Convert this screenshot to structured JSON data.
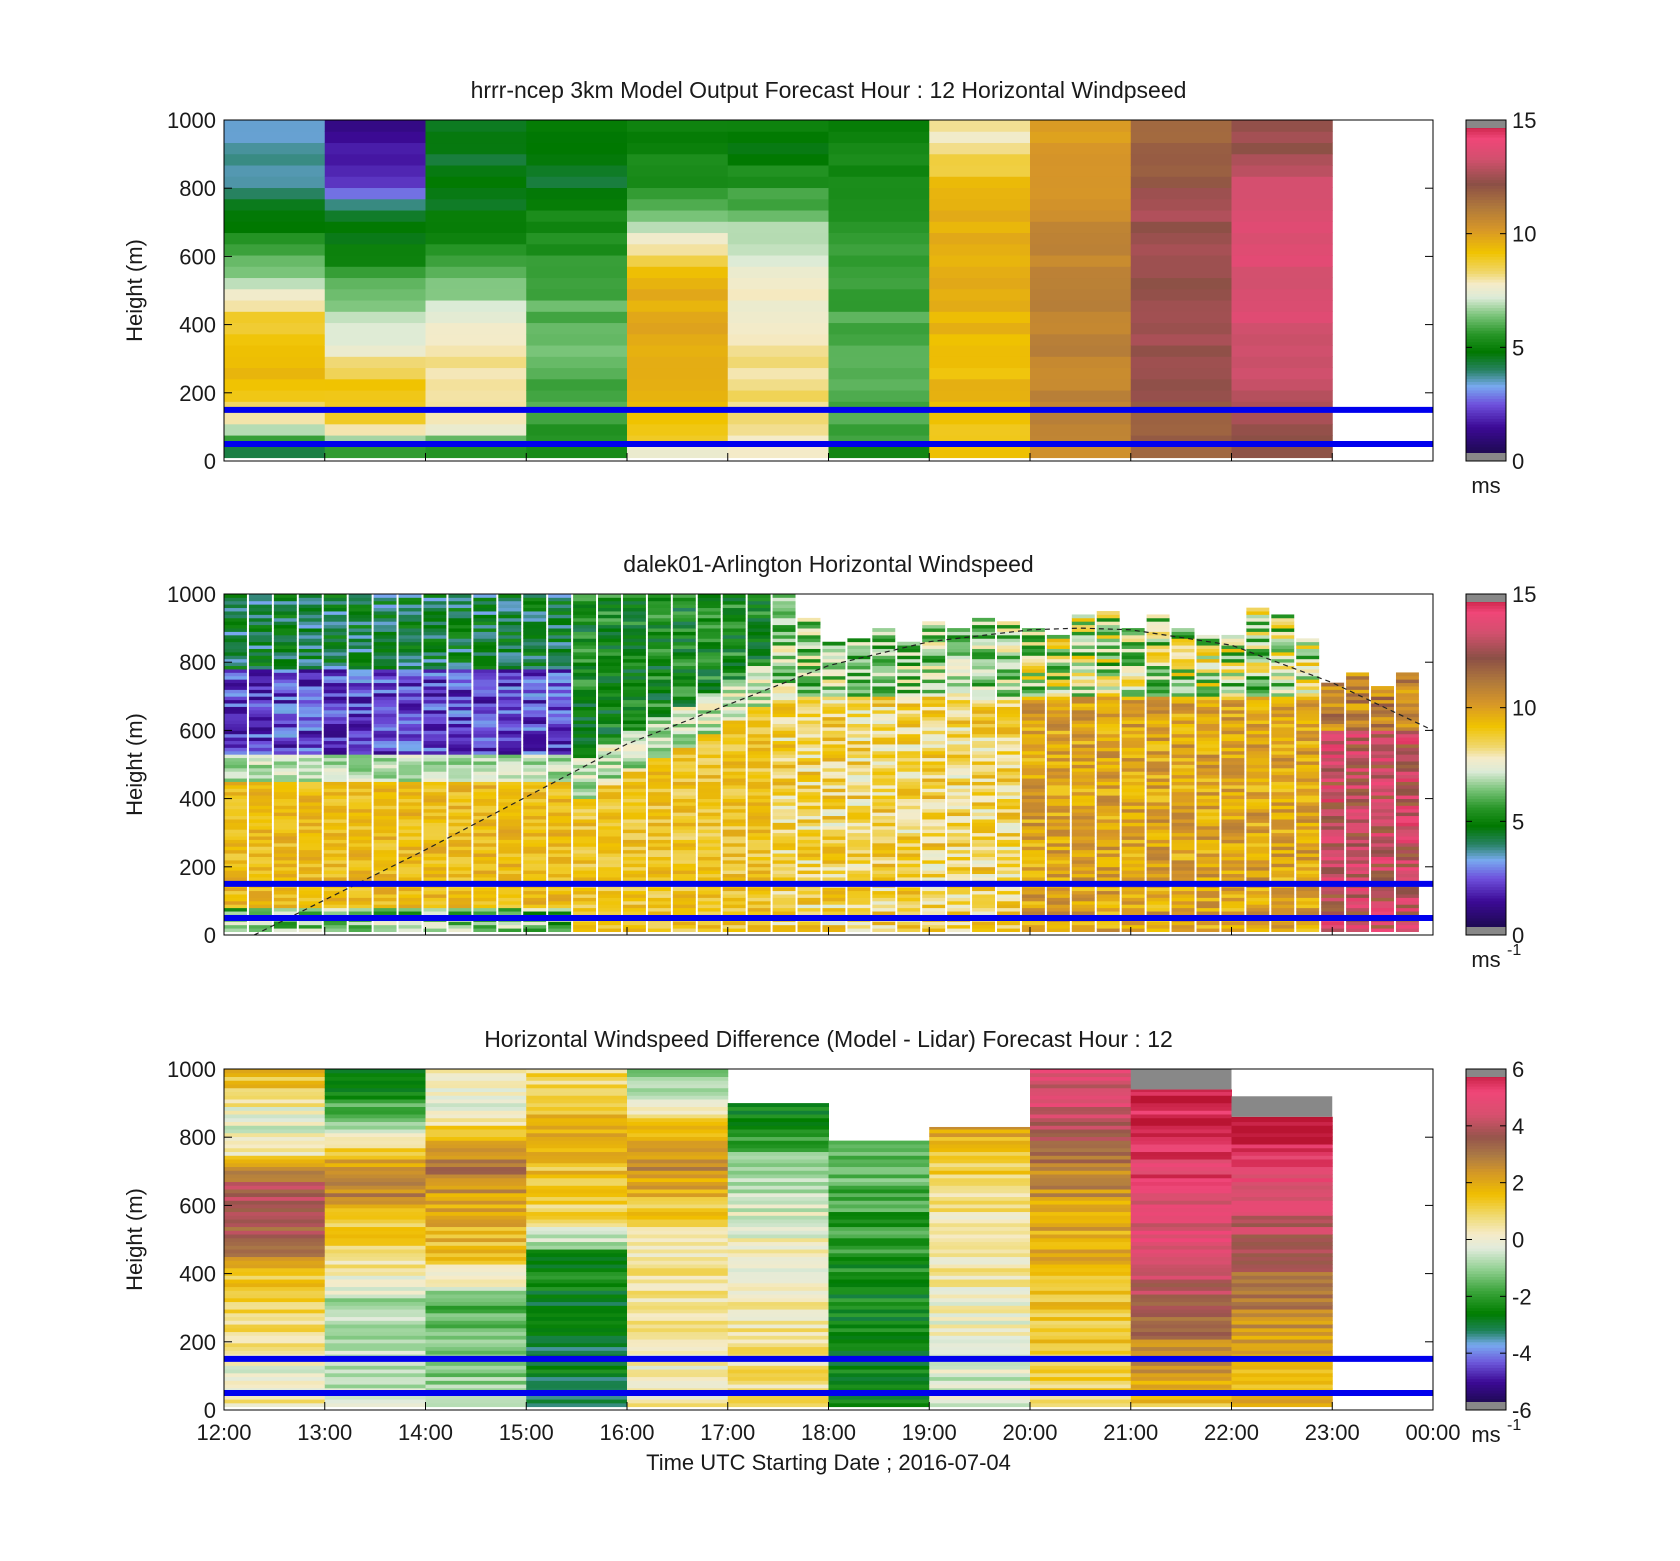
{
  "chart_data": [
    {
      "type": "heatmap",
      "title": "hrrr-ncep 3km Model Output   Forecast Hour : 12 Horizontal Windpseed",
      "ylabel": "Height (m)",
      "xlabel": "",
      "ylim": [
        0,
        1000
      ],
      "yticks": [
        "0",
        "200",
        "400",
        "600",
        "800",
        "1000"
      ],
      "x_categories": [
        "12:00",
        "13:00",
        "14:00",
        "15:00",
        "16:00",
        "17:00",
        "18:00",
        "19:00",
        "20:00",
        "21:00",
        "22:00",
        "23:00",
        "00:00"
      ],
      "x_tick_labels_shown": false,
      "colorbar": {
        "min": 0,
        "max": 15,
        "ticks": [
          "0",
          "5",
          "10",
          "15"
        ],
        "unit": "ms"
      },
      "reference_lines_m": [
        150,
        50
      ],
      "hourly_profiles": [
        {
          "hour": "12:00",
          "levels": [
            [
              0,
              3.5
            ],
            [
              30,
              5.5
            ],
            [
              100,
              7.5
            ],
            [
              200,
              9.4
            ],
            [
              400,
              8.8
            ],
            [
              500,
              7.2
            ],
            [
              600,
              5.6
            ],
            [
              700,
              4.8
            ],
            [
              800,
              3.8
            ],
            [
              900,
              3.5
            ]
          ]
        },
        {
          "hour": "13:00",
          "levels": [
            [
              0,
              5.0
            ],
            [
              30,
              6.5
            ],
            [
              100,
              9.0
            ],
            [
              200,
              9.0
            ],
            [
              350,
              7.2
            ],
            [
              450,
              6.5
            ],
            [
              600,
              5.0
            ],
            [
              700,
              4.6
            ],
            [
              800,
              2.2
            ],
            [
              900,
              1.5
            ]
          ]
        },
        {
          "hour": "14:00",
          "levels": [
            [
              0,
              5.5
            ],
            [
              30,
              6.0
            ],
            [
              100,
              8.2
            ],
            [
              300,
              8.0
            ],
            [
              450,
              7.0
            ],
            [
              600,
              5.5
            ],
            [
              700,
              4.7
            ],
            [
              800,
              4.6
            ],
            [
              900,
              4.6
            ]
          ]
        },
        {
          "hour": "15:00",
          "levels": [
            [
              0,
              5.0
            ],
            [
              50,
              5.5
            ],
            [
              150,
              5.8
            ],
            [
              300,
              6.2
            ],
            [
              500,
              6.0
            ],
            [
              600,
              5.4
            ],
            [
              700,
              5.2
            ],
            [
              800,
              4.6
            ],
            [
              900,
              4.6
            ]
          ]
        },
        {
          "hour": "16:00",
          "levels": [
            [
              0,
              7.0
            ],
            [
              30,
              8.5
            ],
            [
              100,
              9.5
            ],
            [
              300,
              9.6
            ],
            [
              500,
              9.8
            ],
            [
              600,
              8.2
            ],
            [
              700,
              6.5
            ],
            [
              800,
              5.5
            ],
            [
              900,
              4.9
            ]
          ]
        },
        {
          "hour": "17:00",
          "levels": [
            [
              0,
              7.5
            ],
            [
              30,
              7.8
            ],
            [
              100,
              8.3
            ],
            [
              300,
              8.2
            ],
            [
              500,
              7.6
            ],
            [
              600,
              7.2
            ],
            [
              700,
              6.4
            ],
            [
              800,
              5.4
            ],
            [
              900,
              4.8
            ]
          ]
        },
        {
          "hour": "18:00",
          "levels": [
            [
              0,
              5.2
            ],
            [
              50,
              5.8
            ],
            [
              200,
              6.0
            ],
            [
              400,
              6.0
            ],
            [
              600,
              5.7
            ],
            [
              800,
              5.3
            ],
            [
              900,
              5.0
            ]
          ]
        },
        {
          "hour": "19:00",
          "levels": [
            [
              0,
              9.0
            ],
            [
              100,
              9.3
            ],
            [
              300,
              9.4
            ],
            [
              500,
              9.5
            ],
            [
              700,
              9.6
            ],
            [
              800,
              9.4
            ],
            [
              900,
              8.0
            ]
          ]
        },
        {
          "hour": "20:00",
          "levels": [
            [
              0,
              10.5
            ],
            [
              100,
              10.7
            ],
            [
              300,
              10.8
            ],
            [
              500,
              10.8
            ],
            [
              700,
              10.6
            ],
            [
              800,
              10.4
            ],
            [
              900,
              10.2
            ]
          ]
        },
        {
          "hour": "21:00",
          "levels": [
            [
              0,
              11.5
            ],
            [
              100,
              12.0
            ],
            [
              300,
              12.5
            ],
            [
              500,
              12.4
            ],
            [
              700,
              12.5
            ],
            [
              800,
              12.2
            ],
            [
              900,
              11.6
            ]
          ]
        },
        {
          "hour": "22:00",
          "levels": [
            [
              0,
              11.8
            ],
            [
              100,
              12.5
            ],
            [
              300,
              13.4
            ],
            [
              500,
              13.6
            ],
            [
              700,
              13.4
            ],
            [
              800,
              13.1
            ],
            [
              900,
              12.4
            ]
          ]
        }
      ]
    },
    {
      "type": "heatmap",
      "title": "dalek01-Arlington  Horizontal Windspeed",
      "ylabel": "Height (m)",
      "xlabel": "",
      "ylim": [
        0,
        1000
      ],
      "yticks": [
        "0",
        "200",
        "400",
        "600",
        "800",
        "1000"
      ],
      "x_categories": [
        "12:00",
        "13:00",
        "14:00",
        "15:00",
        "16:00",
        "17:00",
        "18:00",
        "19:00",
        "20:00",
        "21:00",
        "22:00",
        "23:00",
        "00:00"
      ],
      "x_tick_labels_shown": false,
      "colorbar": {
        "min": 0,
        "max": 15,
        "ticks": [
          "0",
          "5",
          "10",
          "15"
        ],
        "unit": "ms",
        "unit_exponent": "-1"
      },
      "reference_lines_m": [
        150,
        50
      ],
      "boundary_layer_height_curve": {
        "hours_after_1200": [
          0.3,
          2.0,
          4.0,
          6.0,
          7.0,
          8.0,
          8.5,
          9.0,
          10.0,
          11.0,
          12.0
        ],
        "height_m": [
          0,
          250,
          560,
          790,
          860,
          895,
          900,
          895,
          850,
          740,
          600
        ]
      }
    },
    {
      "type": "heatmap",
      "title": "Horizontal Windspeed Difference (Model - Lidar) Forecast Hour : 12",
      "ylabel": "Height (m)",
      "xlabel": "Time UTC  Starting Date ; 2016-07-04",
      "ylim": [
        0,
        1000
      ],
      "yticks": [
        "0",
        "200",
        "400",
        "600",
        "800",
        "1000"
      ],
      "x_categories": [
        "12:00",
        "13:00",
        "14:00",
        "15:00",
        "16:00",
        "17:00",
        "18:00",
        "19:00",
        "20:00",
        "21:00",
        "22:00",
        "23:00",
        "00:00"
      ],
      "x_tick_labels_shown": true,
      "colorbar": {
        "min": -6,
        "max": 6,
        "ticks": [
          "-6",
          "-4",
          "-2",
          "0",
          "2",
          "4",
          "6"
        ],
        "unit": "ms",
        "unit_exponent": "-1"
      },
      "reference_lines_m": [
        150,
        50
      ],
      "hourly_profiles": [
        {
          "hour": "12:00",
          "levels": [
            [
              0,
              0.5
            ],
            [
              100,
              0.0
            ],
            [
              250,
              0.8
            ],
            [
              400,
              1.5
            ],
            [
              500,
              3.5
            ],
            [
              650,
              3.8
            ],
            [
              750,
              0.5
            ],
            [
              850,
              -0.4
            ],
            [
              950,
              1.5
            ]
          ],
          "top_m": 1000
        },
        {
          "hour": "13:00",
          "levels": [
            [
              0,
              -0.5
            ],
            [
              150,
              -0.5
            ],
            [
              300,
              -1.0
            ],
            [
              450,
              1.0
            ],
            [
              550,
              1.5
            ],
            [
              650,
              3.0
            ],
            [
              750,
              1.5
            ],
            [
              850,
              -1.5
            ],
            [
              950,
              -2.5
            ]
          ],
          "top_m": 1000
        },
        {
          "hour": "14:00",
          "levels": [
            [
              0,
              -1.0
            ],
            [
              150,
              -1.2
            ],
            [
              300,
              -1.5
            ],
            [
              450,
              1.5
            ],
            [
              600,
              2.0
            ],
            [
              700,
              3.2
            ],
            [
              800,
              1.5
            ],
            [
              900,
              -0.5
            ],
            [
              950,
              0.2
            ]
          ],
          "top_m": 1000
        },
        {
          "hour": "15:00",
          "levels": [
            [
              0,
              -2.8
            ],
            [
              150,
              -2.8
            ],
            [
              300,
              -2.8
            ],
            [
              450,
              -2.2
            ],
            [
              550,
              1.0
            ],
            [
              700,
              1.5
            ],
            [
              850,
              1.8
            ],
            [
              950,
              1.0
            ]
          ],
          "top_m": 1000
        },
        {
          "hour": "16:00",
          "levels": [
            [
              0,
              0.4
            ],
            [
              150,
              0.2
            ],
            [
              300,
              0.6
            ],
            [
              500,
              0.5
            ],
            [
              600,
              1.5
            ],
            [
              700,
              2.5
            ],
            [
              800,
              2.0
            ],
            [
              900,
              -0.5
            ],
            [
              950,
              -1.0
            ]
          ],
          "top_m": 1000
        },
        {
          "hour": "17:00",
          "levels": [
            [
              0,
              0.8
            ],
            [
              150,
              0.6
            ],
            [
              300,
              0.5
            ],
            [
              500,
              0.0
            ],
            [
              600,
              -0.5
            ],
            [
              700,
              -1.0
            ],
            [
              800,
              -1.8
            ],
            [
              870,
              -2.5
            ]
          ],
          "top_m": 900
        },
        {
          "hour": "18:00",
          "levels": [
            [
              0,
              -2.8
            ],
            [
              150,
              -2.6
            ],
            [
              300,
              -2.5
            ],
            [
              450,
              -2.2
            ],
            [
              600,
              -1.8
            ],
            [
              700,
              -1.5
            ],
            [
              780,
              -1.2
            ]
          ],
          "top_m": 790
        },
        {
          "hour": "19:00",
          "levels": [
            [
              0,
              -0.5
            ],
            [
              150,
              -0.3
            ],
            [
              300,
              0.2
            ],
            [
              450,
              0.4
            ],
            [
              600,
              0.6
            ],
            [
              700,
              1.2
            ],
            [
              800,
              2.0
            ]
          ],
          "top_m": 830
        },
        {
          "hour": "20:00",
          "levels": [
            [
              0,
              1.0
            ],
            [
              150,
              1.2
            ],
            [
              300,
              1.5
            ],
            [
              450,
              1.8
            ],
            [
              600,
              2.2
            ],
            [
              700,
              2.8
            ],
            [
              800,
              4.0
            ],
            [
              900,
              4.5
            ],
            [
              950,
              4.5
            ]
          ],
          "top_m": 1000
        },
        {
          "hour": "21:00",
          "levels": [
            [
              0,
              1.5
            ],
            [
              150,
              2.5
            ],
            [
              300,
              3.5
            ],
            [
              450,
              4.5
            ],
            [
              600,
              4.8
            ],
            [
              700,
              5.2
            ],
            [
              800,
              5.5
            ],
            [
              900,
              6.0
            ]
          ],
          "top_m": 940
        },
        {
          "hour": "22:00",
          "levels": [
            [
              0,
              1.8
            ],
            [
              150,
              2.0
            ],
            [
              300,
              2.8
            ],
            [
              450,
              3.5
            ],
            [
              550,
              4.2
            ],
            [
              650,
              4.6
            ],
            [
              750,
              5.2
            ],
            [
              800,
              6.0
            ]
          ],
          "top_m": 860
        }
      ]
    }
  ]
}
